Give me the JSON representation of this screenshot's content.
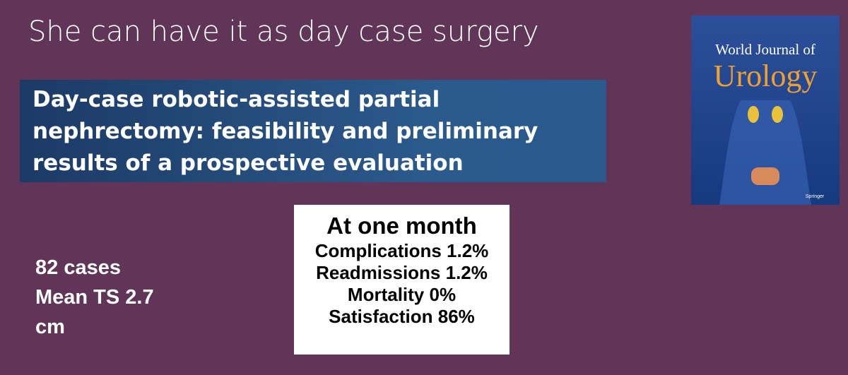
{
  "slide": {
    "title": "She can have it as day case surgery",
    "article_title": [
      "Day-case robotic-assisted partial",
      "nephrectomy: feasibility and preliminary",
      "results of a prospective evaluation"
    ],
    "journal": {
      "name_top": "World Journal of",
      "name_main": "Urology",
      "publisher": "Springer"
    },
    "stats": [
      "82 cases",
      "Mean TS 2.7",
      "cm"
    ],
    "outcomes": {
      "heading": "At one month",
      "items": [
        "Complications 1.2%",
        "Readmissions 1.2%",
        "Mortality 0%",
        "Satisfaction 86%"
      ]
    }
  }
}
